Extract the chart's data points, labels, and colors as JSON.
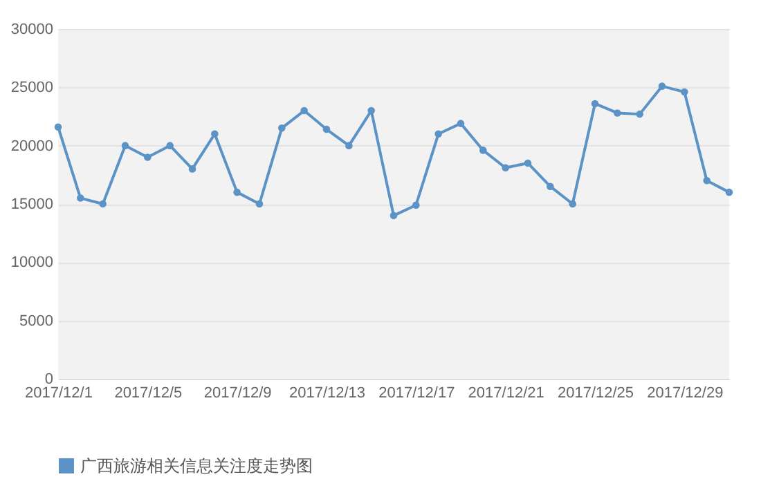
{
  "chart_data": {
    "type": "line",
    "categories": [
      "2017/12/1",
      null,
      null,
      null,
      "2017/12/5",
      null,
      null,
      null,
      "2017/12/9",
      null,
      null,
      null,
      "2017/12/13",
      null,
      null,
      null,
      "2017/12/17",
      null,
      null,
      null,
      "2017/12/21",
      null,
      null,
      null,
      "2017/12/25",
      null,
      null,
      null,
      "2017/12/29",
      null,
      null
    ],
    "series": [
      {
        "name": "广西旅游相关信息关注度走势图",
        "color": "#5b93c7",
        "values": [
          21600,
          15500,
          15000,
          20000,
          19000,
          20000,
          18000,
          21000,
          16000,
          15000,
          21500,
          23000,
          21400,
          20000,
          23000,
          14000,
          14900,
          21000,
          21900,
          19600,
          18100,
          18500,
          16500,
          15000,
          23600,
          22800,
          22700,
          25100,
          24600,
          17000,
          16000
        ]
      }
    ],
    "ylim": [
      0,
      30000
    ],
    "yticks": [
      0,
      5000,
      10000,
      15000,
      20000,
      25000,
      30000
    ],
    "grid": "y",
    "legend": "bottom",
    "marker": "circle",
    "line_style": "solid"
  }
}
